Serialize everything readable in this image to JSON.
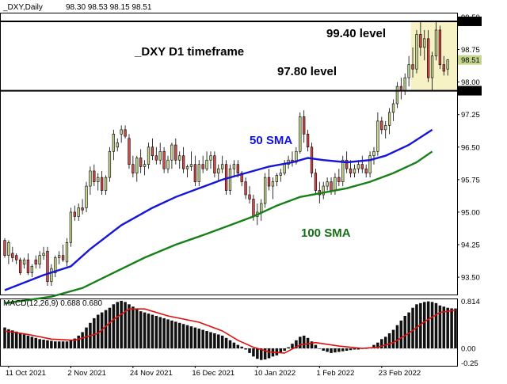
{
  "chart_data": {
    "type": "candlestick",
    "header": {
      "symbol_timeframe": "_DXY,Daily",
      "ohlc": "98.30 98.53 98.15 98.51"
    },
    "title": "_DXY D1 timeframe",
    "annotations": {
      "level_high_label": "99.40 level",
      "level_low_label": "97.80 level",
      "sma50_label": "50 SMA",
      "sma100_label": "100 SMA"
    },
    "levels": {
      "high": 99.4,
      "low": 97.8
    },
    "highlight_zone": {
      "start_index": 105,
      "end_index": 123,
      "ymin": 97.8,
      "ymax": 99.4
    },
    "price_axis": {
      "ylim": [
        93.1,
        99.6
      ],
      "ticks": [
        "99.50",
        "98.75",
        "98.00",
        "97.25",
        "96.50",
        "95.75",
        "95.00",
        "94.25",
        "93.50"
      ],
      "tick_values": [
        99.5,
        98.75,
        98.0,
        97.25,
        96.5,
        95.75,
        95.0,
        94.25,
        93.5
      ],
      "level_badges": [
        "99.40",
        "97.80"
      ],
      "last_badge": "98.51",
      "last_value": 98.51
    },
    "x_axis": {
      "labels": [
        "11 Oct 2021",
        "2 Nov 2021",
        "24 Nov 2021",
        "16 Dec 2021",
        "10 Jan 2022",
        "1 Feb 2022",
        "23 Feb 2022"
      ],
      "label_indices": [
        1,
        17,
        33,
        49,
        65,
        81,
        97
      ]
    },
    "candles": [
      [
        94.35,
        94.4,
        93.95,
        94.0
      ],
      [
        94.0,
        94.35,
        93.8,
        94.3
      ],
      [
        94.05,
        94.2,
        93.85,
        93.95
      ],
      [
        94.0,
        94.05,
        93.8,
        93.9
      ],
      [
        93.9,
        93.95,
        93.55,
        93.6
      ],
      [
        93.8,
        93.95,
        93.7,
        93.9
      ],
      [
        93.9,
        94.05,
        93.55,
        93.6
      ],
      [
        93.6,
        93.8,
        93.5,
        93.75
      ],
      [
        93.9,
        94.0,
        93.7,
        93.8
      ],
      [
        93.8,
        94.1,
        93.7,
        94.0
      ],
      [
        94.0,
        94.2,
        93.9,
        94.05
      ],
      [
        94.1,
        94.2,
        93.3,
        93.4
      ],
      [
        93.4,
        93.8,
        93.3,
        93.7
      ],
      [
        93.6,
        94.0,
        93.5,
        93.95
      ],
      [
        93.95,
        94.1,
        93.8,
        94.0
      ],
      [
        94.0,
        94.25,
        93.85,
        93.9
      ],
      [
        93.85,
        94.4,
        93.75,
        94.3
      ],
      [
        94.3,
        95.1,
        94.2,
        95.0
      ],
      [
        95.0,
        95.15,
        94.8,
        94.9
      ],
      [
        94.9,
        95.2,
        94.8,
        95.1
      ],
      [
        95.1,
        95.3,
        94.95,
        95.05
      ],
      [
        95.1,
        95.7,
        95.0,
        95.6
      ],
      [
        95.6,
        96.05,
        95.4,
        95.95
      ],
      [
        95.95,
        96.1,
        95.6,
        95.7
      ],
      [
        95.7,
        95.9,
        95.5,
        95.8
      ],
      [
        95.8,
        95.95,
        95.4,
        95.5
      ],
      [
        95.5,
        95.85,
        95.4,
        95.8
      ],
      [
        95.8,
        96.5,
        95.7,
        96.4
      ],
      [
        96.4,
        96.9,
        96.2,
        96.8
      ],
      [
        96.5,
        96.7,
        96.4,
        96.6
      ],
      [
        96.8,
        97.0,
        96.6,
        96.9
      ],
      [
        96.9,
        97.0,
        96.7,
        96.75
      ],
      [
        96.7,
        96.8,
        96.0,
        96.1
      ],
      [
        96.1,
        96.3,
        95.8,
        95.9
      ],
      [
        95.9,
        96.3,
        95.7,
        96.25
      ],
      [
        96.25,
        96.45,
        95.9,
        96.05
      ],
      [
        96.05,
        96.2,
        95.85,
        96.1
      ],
      [
        96.1,
        96.6,
        96.0,
        96.5
      ],
      [
        96.5,
        96.7,
        96.2,
        96.3
      ],
      [
        96.3,
        96.5,
        96.1,
        96.2
      ],
      [
        96.2,
        96.6,
        96.1,
        96.4
      ],
      [
        96.4,
        96.5,
        95.9,
        96.0
      ],
      [
        96.0,
        96.3,
        95.9,
        96.2
      ],
      [
        96.2,
        96.6,
        96.0,
        96.55
      ],
      [
        96.55,
        96.7,
        96.1,
        96.2
      ],
      [
        96.2,
        96.4,
        96.0,
        96.3
      ],
      [
        96.3,
        96.5,
        95.9,
        96.0
      ],
      [
        96.0,
        96.1,
        95.8,
        96.05
      ],
      [
        96.05,
        96.4,
        95.95,
        96.1
      ],
      [
        96.1,
        96.3,
        95.6,
        95.7
      ],
      [
        95.7,
        96.2,
        95.6,
        96.1
      ],
      [
        96.1,
        96.3,
        95.9,
        96.0
      ],
      [
        96.0,
        96.4,
        95.95,
        96.2
      ],
      [
        96.2,
        96.4,
        96.0,
        96.3
      ],
      [
        96.3,
        96.4,
        95.8,
        95.9
      ],
      [
        95.9,
        96.1,
        95.7,
        96.0
      ],
      [
        96.0,
        96.3,
        95.9,
        96.1
      ],
      [
        96.1,
        96.2,
        95.4,
        95.5
      ],
      [
        95.5,
        96.1,
        95.4,
        96.0
      ],
      [
        96.0,
        96.2,
        95.8,
        96.1
      ],
      [
        96.1,
        96.2,
        95.8,
        95.9
      ],
      [
        95.9,
        95.95,
        95.6,
        95.7
      ],
      [
        95.7,
        95.8,
        95.3,
        95.4
      ],
      [
        95.4,
        95.6,
        95.2,
        95.3
      ],
      [
        95.3,
        95.4,
        94.8,
        94.9
      ],
      [
        94.9,
        95.2,
        94.7,
        95.0
      ],
      [
        95.0,
        95.3,
        94.8,
        95.2
      ],
      [
        95.2,
        95.9,
        95.1,
        95.8
      ],
      [
        95.8,
        96.0,
        95.5,
        95.6
      ],
      [
        95.6,
        95.8,
        95.3,
        95.7
      ],
      [
        95.7,
        95.9,
        95.6,
        95.85
      ],
      [
        95.85,
        96.0,
        95.7,
        95.9
      ],
      [
        95.9,
        96.2,
        95.85,
        96.1
      ],
      [
        96.1,
        96.3,
        96.0,
        96.2
      ],
      [
        96.2,
        96.4,
        96.05,
        96.15
      ],
      [
        96.15,
        96.5,
        96.1,
        96.4
      ],
      [
        96.4,
        97.3,
        96.35,
        97.2
      ],
      [
        97.2,
        97.35,
        96.6,
        96.8
      ],
      [
        96.8,
        96.9,
        96.4,
        96.5
      ],
      [
        96.5,
        96.6,
        95.8,
        95.9
      ],
      [
        95.9,
        96.0,
        95.4,
        95.5
      ],
      [
        95.5,
        95.7,
        95.2,
        95.4
      ],
      [
        95.4,
        95.7,
        95.3,
        95.6
      ],
      [
        95.6,
        95.8,
        95.5,
        95.7
      ],
      [
        95.7,
        95.8,
        95.4,
        95.5
      ],
      [
        95.5,
        95.9,
        95.4,
        95.8
      ],
      [
        95.8,
        96.0,
        95.6,
        95.7
      ],
      [
        95.7,
        96.3,
        95.6,
        96.2
      ],
      [
        96.2,
        96.4,
        95.9,
        96.0
      ],
      [
        96.0,
        96.2,
        95.8,
        95.9
      ],
      [
        95.9,
        96.1,
        95.8,
        96.0
      ],
      [
        96.0,
        96.2,
        95.9,
        96.1
      ],
      [
        96.1,
        96.3,
        95.9,
        96.0
      ],
      [
        96.0,
        96.1,
        95.8,
        95.9
      ],
      [
        95.9,
        96.4,
        95.8,
        96.3
      ],
      [
        96.3,
        96.5,
        96.1,
        96.4
      ],
      [
        96.4,
        97.3,
        96.3,
        97.1
      ],
      [
        97.1,
        97.2,
        96.8,
        96.9
      ],
      [
        96.9,
        97.1,
        96.7,
        97.0
      ],
      [
        97.0,
        97.4,
        96.8,
        97.3
      ],
      [
        97.3,
        97.6,
        97.1,
        97.5
      ],
      [
        97.5,
        98.0,
        97.4,
        97.9
      ],
      [
        97.9,
        98.1,
        97.6,
        97.8
      ],
      [
        97.8,
        98.2,
        97.7,
        98.1
      ],
      [
        98.1,
        98.6,
        97.9,
        98.4
      ],
      [
        98.4,
        98.8,
        98.1,
        98.3
      ],
      [
        98.3,
        99.2,
        98.2,
        99.1
      ],
      [
        99.1,
        99.4,
        98.6,
        98.8
      ],
      [
        98.8,
        99.2,
        98.5,
        99.0
      ],
      [
        99.0,
        99.2,
        98.0,
        98.1
      ],
      [
        98.1,
        98.7,
        97.8,
        98.6
      ],
      [
        98.6,
        99.4,
        98.5,
        99.2
      ],
      [
        99.2,
        99.3,
        98.3,
        98.4
      ],
      [
        98.4,
        98.6,
        98.15,
        98.25
      ],
      [
        98.3,
        98.53,
        98.15,
        98.51
      ]
    ],
    "sma50": [
      [
        0,
        93.2
      ],
      [
        10,
        93.55
      ],
      [
        17,
        93.75
      ],
      [
        22,
        94.15
      ],
      [
        30,
        94.7
      ],
      [
        38,
        95.1
      ],
      [
        44,
        95.35
      ],
      [
        50,
        95.55
      ],
      [
        56,
        95.75
      ],
      [
        62,
        95.9
      ],
      [
        68,
        96.05
      ],
      [
        74,
        96.15
      ],
      [
        78,
        96.25
      ],
      [
        82,
        96.2
      ],
      [
        88,
        96.15
      ],
      [
        94,
        96.2
      ],
      [
        98,
        96.3
      ],
      [
        104,
        96.55
      ],
      [
        110,
        96.9
      ]
    ],
    "sma100": [
      [
        0,
        92.9
      ],
      [
        12,
        93.05
      ],
      [
        20,
        93.25
      ],
      [
        28,
        93.6
      ],
      [
        36,
        93.95
      ],
      [
        44,
        94.25
      ],
      [
        52,
        94.5
      ],
      [
        58,
        94.7
      ],
      [
        64,
        94.9
      ],
      [
        70,
        95.15
      ],
      [
        76,
        95.35
      ],
      [
        82,
        95.45
      ],
      [
        88,
        95.55
      ],
      [
        94,
        95.7
      ],
      [
        100,
        95.9
      ],
      [
        106,
        96.15
      ],
      [
        110,
        96.4
      ]
    ],
    "macd": {
      "label": "MACD(12,26,9) 0.688 0.680",
      "ylim": [
        -0.3,
        0.86
      ],
      "ticks": [
        "0.814",
        "0.00",
        "-0.25"
      ],
      "tick_values": [
        0.814,
        0.0,
        -0.25
      ],
      "histogram": [
        0.36,
        0.33,
        0.31,
        0.29,
        0.27,
        0.24,
        0.22,
        0.2,
        0.18,
        0.16,
        0.15,
        0.14,
        0.13,
        0.12,
        0.12,
        0.12,
        0.12,
        0.14,
        0.17,
        0.22,
        0.28,
        0.36,
        0.44,
        0.52,
        0.58,
        0.62,
        0.66,
        0.7,
        0.76,
        0.8,
        0.82,
        0.8,
        0.76,
        0.72,
        0.68,
        0.64,
        0.62,
        0.6,
        0.58,
        0.56,
        0.54,
        0.52,
        0.5,
        0.48,
        0.46,
        0.44,
        0.42,
        0.4,
        0.38,
        0.36,
        0.34,
        0.32,
        0.3,
        0.28,
        0.26,
        0.24,
        0.22,
        0.18,
        0.14,
        0.1,
        0.06,
        0.03,
        -0.02,
        -0.08,
        -0.14,
        -0.18,
        -0.2,
        -0.19,
        -0.17,
        -0.14,
        -0.12,
        -0.08,
        -0.04,
        0.02,
        0.08,
        0.14,
        0.2,
        0.22,
        0.18,
        0.12,
        0.06,
        0.0,
        -0.04,
        -0.06,
        -0.08,
        -0.07,
        -0.06,
        -0.05,
        -0.04,
        -0.03,
        -0.02,
        -0.02,
        -0.01,
        0.0,
        0.02,
        0.06,
        0.1,
        0.16,
        0.2,
        0.26,
        0.32,
        0.4,
        0.48,
        0.56,
        0.62,
        0.7,
        0.76,
        0.78,
        0.8,
        0.81,
        0.8,
        0.78,
        0.74,
        0.72,
        0.7,
        0.69,
        0.688
      ],
      "signal": [
        [
          0,
          0.3
        ],
        [
          6,
          0.24
        ],
        [
          12,
          0.16
        ],
        [
          18,
          0.14
        ],
        [
          24,
          0.26
        ],
        [
          28,
          0.5
        ],
        [
          32,
          0.68
        ],
        [
          36,
          0.68
        ],
        [
          42,
          0.56
        ],
        [
          50,
          0.45
        ],
        [
          56,
          0.3
        ],
        [
          60,
          0.14
        ],
        [
          64,
          0.02
        ],
        [
          68,
          -0.06
        ],
        [
          72,
          -0.08
        ],
        [
          76,
          0.06
        ],
        [
          80,
          0.1
        ],
        [
          86,
          0.04
        ],
        [
          92,
          0.0
        ],
        [
          96,
          0.02
        ],
        [
          100,
          0.1
        ],
        [
          104,
          0.26
        ],
        [
          108,
          0.46
        ],
        [
          112,
          0.62
        ],
        [
          116,
          0.66
        ]
      ]
    }
  }
}
